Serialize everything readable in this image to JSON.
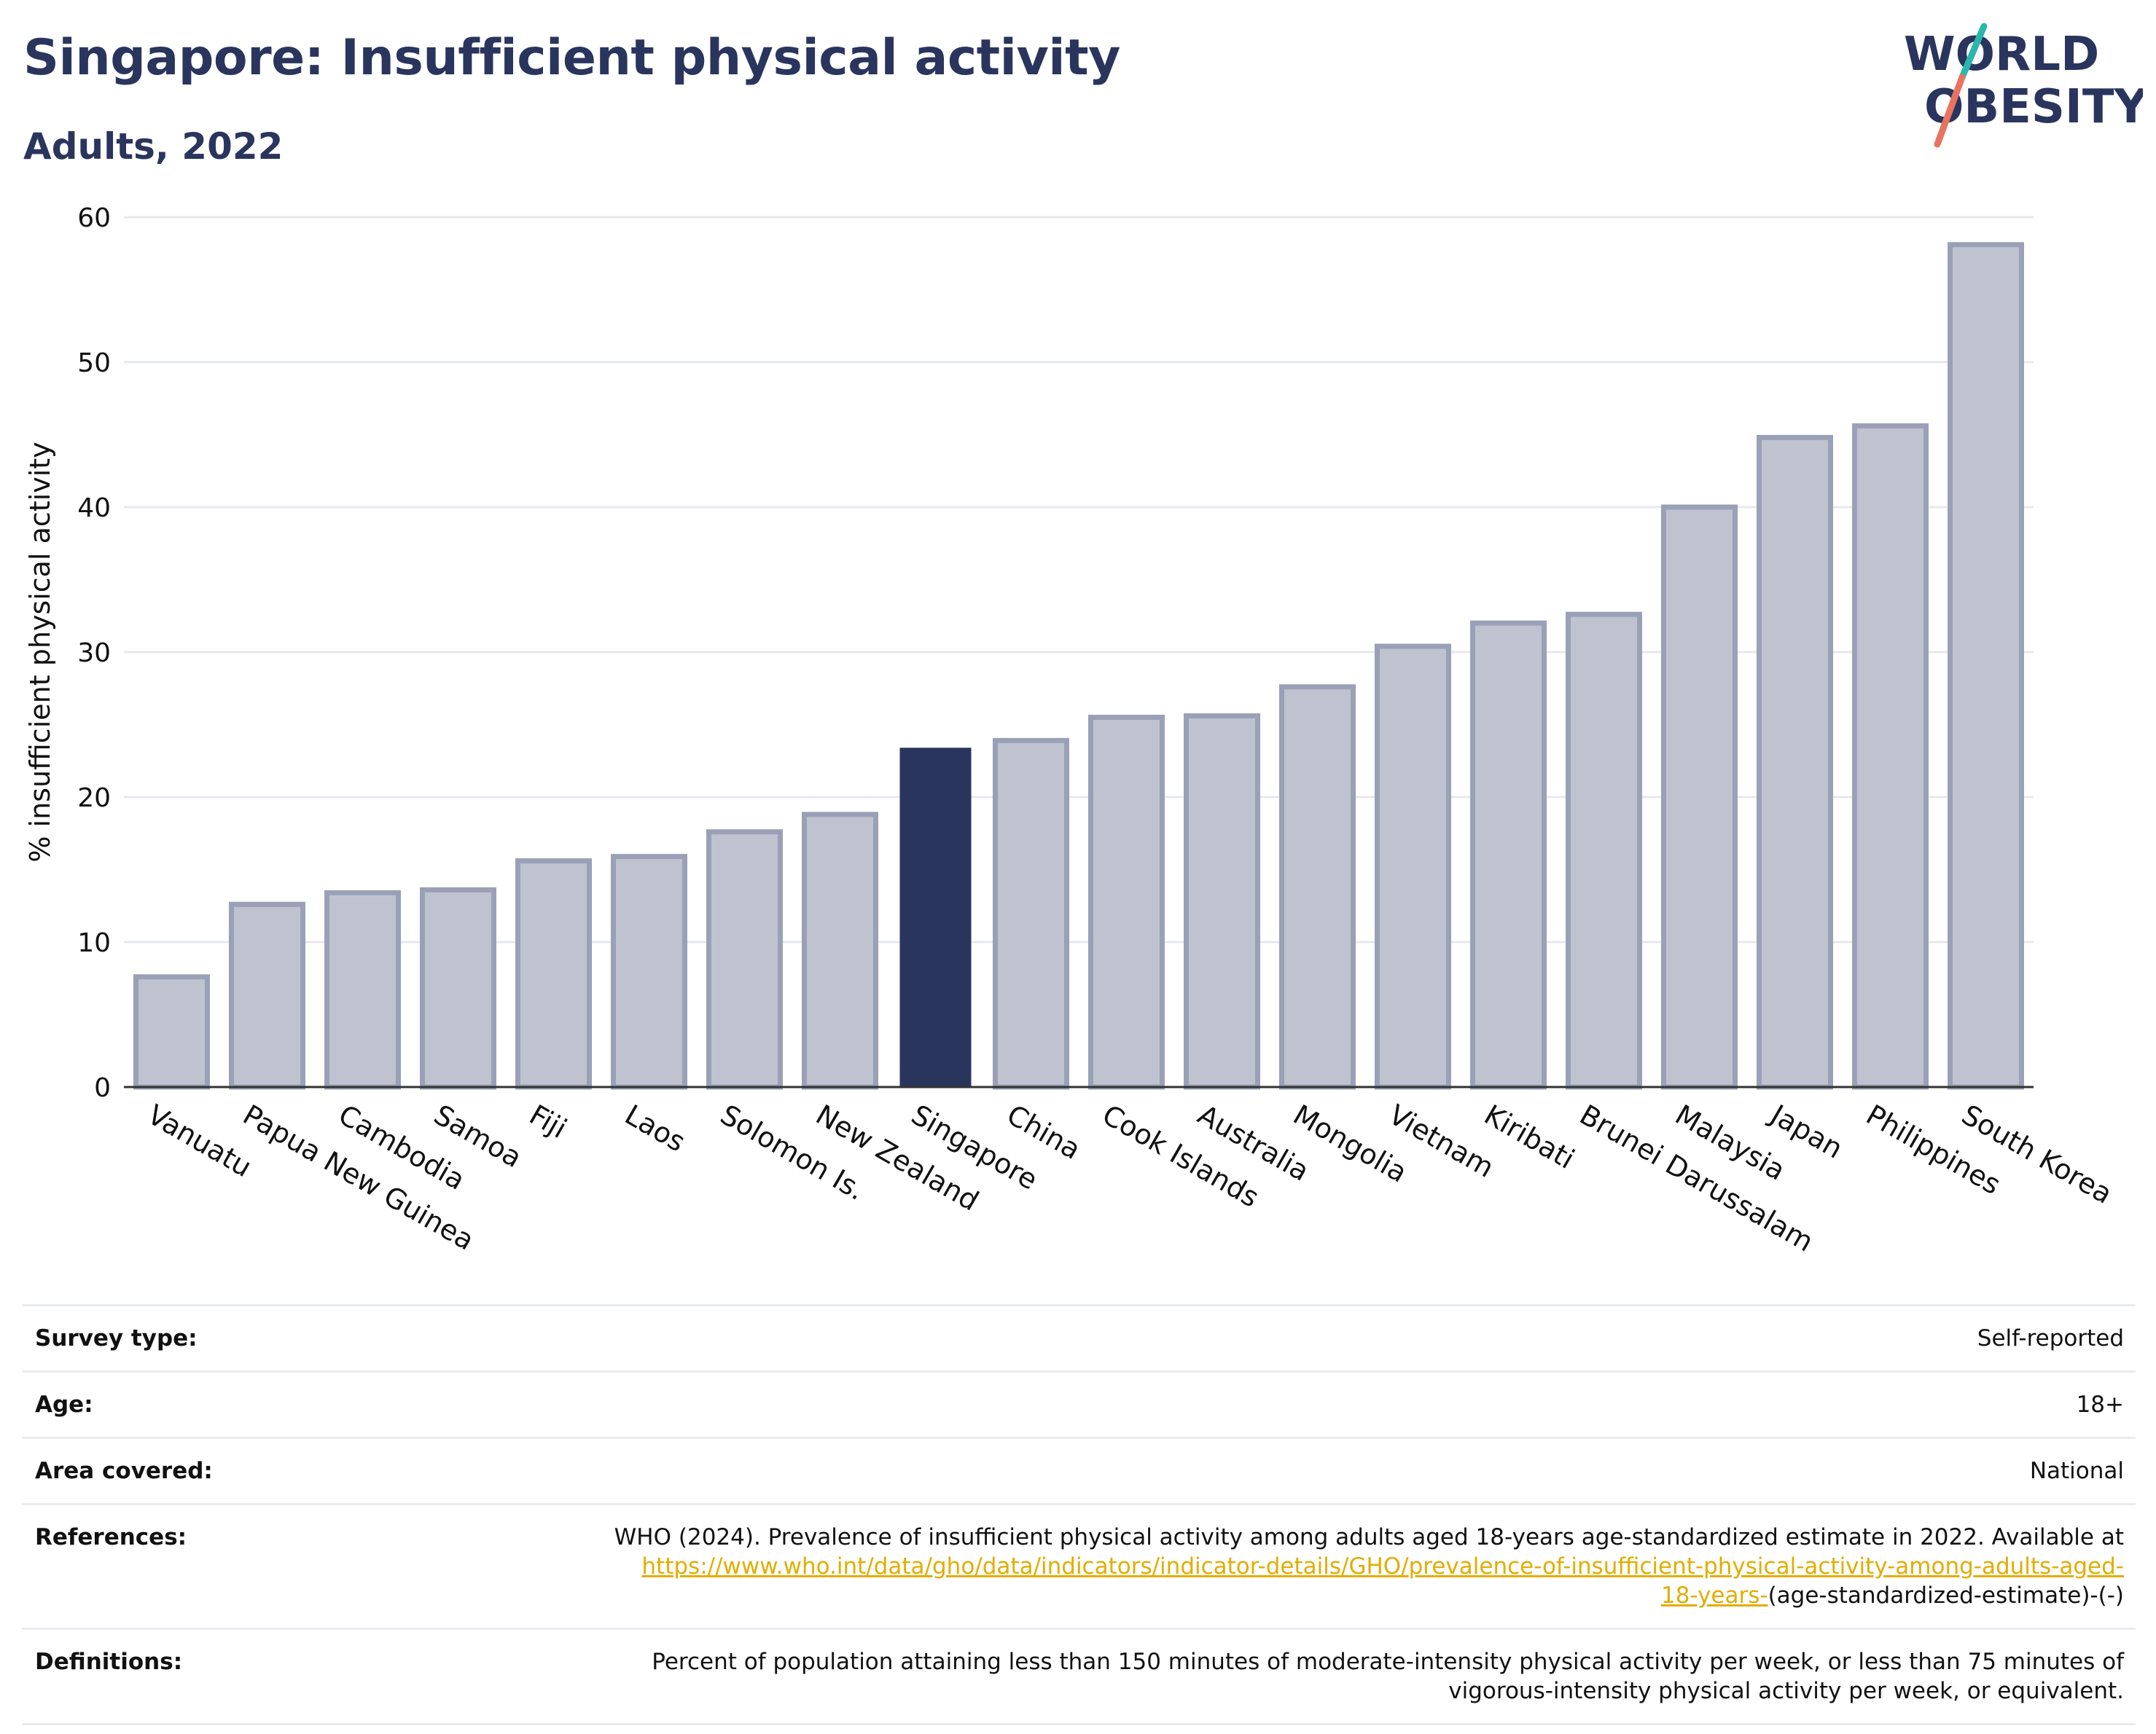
{
  "header": {
    "title": "Singapore: Insufficient physical activity",
    "subtitle": "Adults, 2022",
    "logo_line1": "WORLD",
    "logo_line2": "OBESITY"
  },
  "colors": {
    "highlight": "#2a355e",
    "bar_fill": "#bfc3d0",
    "bar_stroke": "#9aa0b6",
    "title": "#2a355e",
    "link": "#e2ad00",
    "logo_slash_teal": "#2bb6ad",
    "logo_slash_coral": "#e8735f"
  },
  "chart_data": {
    "type": "bar",
    "title": "Singapore: Insufficient physical activity",
    "subtitle": "Adults, 2022",
    "xlabel": "",
    "ylabel": "% insufficient physical activity",
    "ylim": [
      0,
      60
    ],
    "yticks": [
      0,
      10,
      20,
      30,
      40,
      50,
      60
    ],
    "grid": true,
    "highlight_category": "Singapore",
    "categories": [
      "Vanuatu",
      "Papua New Guinea",
      "Cambodia",
      "Samoa",
      "Fiji",
      "Laos",
      "Solomon Is.",
      "New Zealand",
      "Singapore",
      "China",
      "Cook Islands",
      "Australia",
      "Mongolia",
      "Vietnam",
      "Kiribati",
      "Brunei Darussalam",
      "Malaysia",
      "Japan",
      "Philippines",
      "South Korea"
    ],
    "values": [
      7.6,
      12.6,
      13.4,
      13.6,
      15.6,
      15.9,
      17.6,
      18.8,
      23.4,
      23.9,
      25.5,
      25.6,
      27.6,
      30.4,
      32.0,
      32.6,
      40.0,
      44.8,
      45.6,
      58.1
    ]
  },
  "details": {
    "survey_type_label": "Survey type:",
    "survey_type_value": "Self-reported",
    "age_label": "Age:",
    "age_value": "18+",
    "area_label": "Area covered:",
    "area_value": "National",
    "references_label": "References:",
    "references_text": "WHO (2024). Prevalence of insufficient physical activity among adults aged 18-years age-standardized estimate in 2022. Available at",
    "references_link_a": "https://www.who.int/data/gho/data/indicators/indicator-details/GHO/prevalence-of-insufficient-physical-activity-among-adults-aged-",
    "references_link_b": "18-years-",
    "references_tail": "(age-standardized-estimate)-(-)",
    "definitions_label": "Definitions:",
    "definitions_line1": "Percent of population attaining less than 150 minutes of moderate-intensity physical activity per week, or less than 75 minutes of",
    "definitions_line2": "vigorous-intensity physical activity per week, or equivalent."
  }
}
